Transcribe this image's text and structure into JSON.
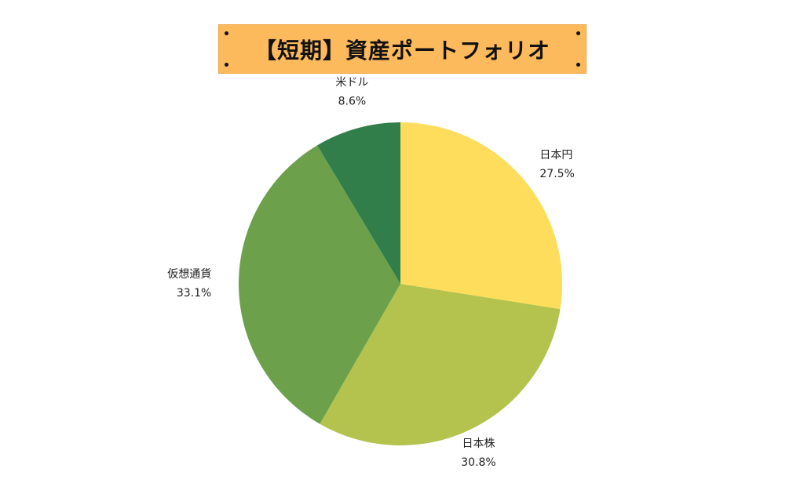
{
  "chart_data": {
    "type": "pie",
    "title": "【短期】資産ポートフォリオ",
    "slices": [
      {
        "label": "日本円",
        "value": 27.5,
        "value_label": "27.5%",
        "color": "#fedd5c"
      },
      {
        "label": "日本株",
        "value": 30.8,
        "value_label": "30.8%",
        "color": "#b3c34e"
      },
      {
        "label": "仮想通貨",
        "value": 33.1,
        "value_label": "33.1%",
        "color": "#6ca04a"
      },
      {
        "label": "米ドル",
        "value": 8.6,
        "value_label": "8.6%",
        "color": "#317e4a"
      }
    ],
    "start_angle": "12 o'clock",
    "direction": "clockwise",
    "legend": "none",
    "title_background": "#fdba5c"
  }
}
